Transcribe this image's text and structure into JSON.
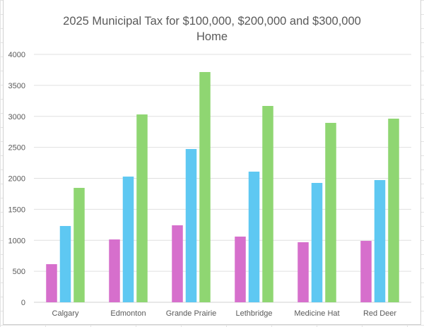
{
  "chart_data": {
    "type": "bar",
    "title": "2025 Municipal Tax for $100,000, $200,000 and $300,000 Home",
    "title_lines": [
      "2025 Municipal Tax for $100,000, $200,000 and $300,000",
      "Home"
    ],
    "categories": [
      "Calgary",
      "Edmonton",
      "Grande Prairie",
      "Lethbridge",
      "Medicine Hat",
      "Red Deer"
    ],
    "series": [
      {
        "values": [
          615,
          1014,
          1242,
          1060,
          969,
          991
        ],
        "color": "#d66fcc"
      },
      {
        "values": [
          1231,
          2028,
          2473,
          2108,
          1926,
          1972
        ],
        "color": "#5ec8f2"
      },
      {
        "values": [
          1846,
          3031,
          3715,
          3168,
          2895,
          2963
        ],
        "color": "#8fd672"
      }
    ],
    "ylim": [
      0,
      4000
    ],
    "yticks": [
      "0",
      "500",
      "1000",
      "1500",
      "2000",
      "2500",
      "3000",
      "3500",
      "4000"
    ],
    "grid": true,
    "legend": "none",
    "xlabel": "",
    "ylabel": ""
  }
}
